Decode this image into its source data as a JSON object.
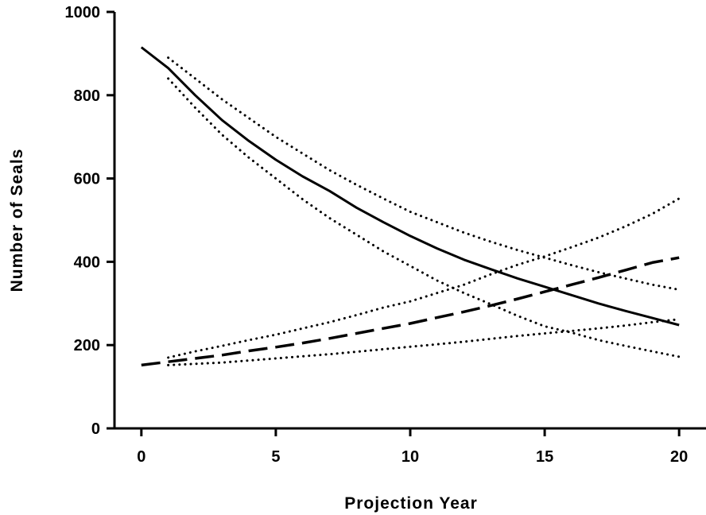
{
  "chart_data": {
    "type": "line",
    "title": "",
    "xlabel": "Projection Year",
    "ylabel": "Number of Seals",
    "xlim": [
      -1,
      21
    ],
    "ylim": [
      0,
      1000
    ],
    "x_ticks": [
      0,
      5,
      10,
      15,
      20
    ],
    "y_ticks": [
      0,
      200,
      400,
      600,
      800,
      1000
    ],
    "grid": false,
    "legend": "none",
    "series": [
      {
        "style": "solid",
        "color": "#000000",
        "x": [
          0,
          1,
          2,
          3,
          4,
          5,
          6,
          7,
          8,
          9,
          10,
          11,
          12,
          13,
          14,
          15,
          16,
          17,
          18,
          19,
          20
        ],
        "y": [
          915,
          865,
          800,
          740,
          690,
          645,
          605,
          570,
          530,
          495,
          462,
          432,
          405,
          382,
          360,
          340,
          320,
          300,
          282,
          265,
          248
        ]
      },
      {
        "style": "dotted",
        "color": "#000000",
        "x": [
          1,
          2,
          3,
          4,
          5,
          6,
          7,
          8,
          9,
          10,
          11,
          12,
          13,
          14,
          15,
          16,
          17,
          18,
          19,
          20
        ],
        "y": [
          890,
          840,
          790,
          745,
          700,
          660,
          620,
          585,
          552,
          520,
          495,
          470,
          448,
          428,
          410,
          392,
          375,
          360,
          345,
          333
        ]
      },
      {
        "style": "dotted",
        "color": "#000000",
        "x": [
          1,
          2,
          3,
          4,
          5,
          6,
          7,
          8,
          9,
          10,
          11,
          12,
          13,
          14,
          15,
          16,
          17,
          18,
          19,
          20
        ],
        "y": [
          840,
          770,
          705,
          650,
          600,
          550,
          505,
          465,
          425,
          390,
          355,
          325,
          298,
          270,
          245,
          230,
          212,
          198,
          185,
          172
        ]
      },
      {
        "style": "dashed",
        "color": "#000000",
        "x": [
          0,
          1,
          2,
          3,
          4,
          5,
          6,
          7,
          8,
          9,
          10,
          11,
          12,
          13,
          14,
          15,
          16,
          17,
          18,
          19,
          20
        ],
        "y": [
          152,
          160,
          168,
          176,
          186,
          195,
          205,
          216,
          228,
          240,
          252,
          266,
          280,
          295,
          311,
          328,
          345,
          362,
          380,
          398,
          410
        ]
      },
      {
        "style": "dotted",
        "color": "#000000",
        "x": [
          1,
          2,
          3,
          4,
          5,
          6,
          7,
          8,
          9,
          10,
          11,
          12,
          13,
          14,
          15,
          16,
          17,
          18,
          19,
          20
        ],
        "y": [
          170,
          185,
          198,
          212,
          225,
          240,
          255,
          272,
          290,
          305,
          325,
          345,
          370,
          393,
          413,
          435,
          458,
          485,
          515,
          552
        ]
      },
      {
        "style": "dotted",
        "color": "#000000",
        "x": [
          1,
          2,
          3,
          4,
          5,
          6,
          7,
          8,
          9,
          10,
          11,
          12,
          13,
          14,
          15,
          16,
          17,
          18,
          19,
          20
        ],
        "y": [
          152,
          155,
          158,
          163,
          168,
          173,
          178,
          184,
          190,
          196,
          202,
          208,
          215,
          222,
          228,
          234,
          240,
          247,
          255,
          262
        ]
      }
    ]
  }
}
